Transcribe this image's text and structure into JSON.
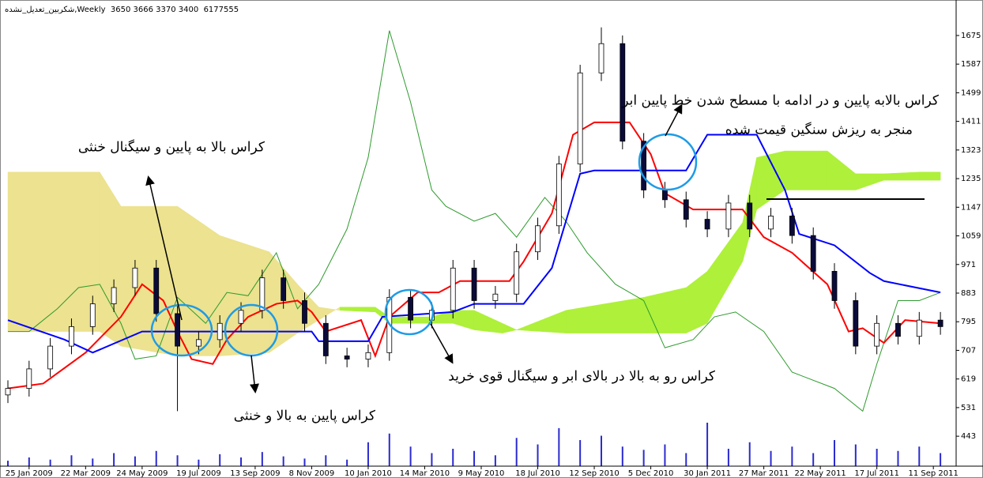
{
  "chart_data": {
    "type": "candlestick",
    "header": "شکربین_تعدیل_نشده,Weekly  3650 3666 3370 3400  6177555",
    "xlim": [
      0,
      134
    ],
    "ylim": [
      351,
      1772
    ],
    "yticks": [
      443,
      531,
      619,
      707,
      795,
      883,
      971,
      1059,
      1147,
      1235,
      1323,
      1411,
      1499,
      1587,
      1675
    ],
    "xticks": [
      {
        "value": 3,
        "label": "25 Jan 2009"
      },
      {
        "value": 11,
        "label": "22 Mar 2009"
      },
      {
        "value": 19,
        "label": "24 May 2009"
      },
      {
        "value": 27,
        "label": "19 Jul 2009"
      },
      {
        "value": 35,
        "label": "13 Sep 2009"
      },
      {
        "value": 43,
        "label": "8 Nov 2009"
      },
      {
        "value": 51,
        "label": "10 Jan 2010"
      },
      {
        "value": 59,
        "label": "14 Mar 2010"
      },
      {
        "value": 67,
        "label": "9 May 2010"
      },
      {
        "value": 75,
        "label": "18 Jul 2010"
      },
      {
        "value": 83,
        "label": "12 Sep 2010"
      },
      {
        "value": 91,
        "label": "5 Dec 2010"
      },
      {
        "value": 99,
        "label": "30 Jan 2011"
      },
      {
        "value": 107,
        "label": "27 Mar 2011"
      },
      {
        "value": 115,
        "label": "22 May 2011"
      },
      {
        "value": 123,
        "label": "17 Jul 2011"
      },
      {
        "value": 131,
        "label": "11 Sep 2011"
      }
    ],
    "candles": {
      "x": [
        0,
        3,
        6,
        9,
        12,
        15,
        18,
        21,
        24,
        27,
        30,
        33,
        36,
        39,
        42,
        45,
        48,
        51,
        54,
        57,
        60,
        63,
        66,
        69,
        72,
        75,
        78,
        81,
        84,
        87,
        90,
        93,
        96,
        99,
        102,
        105,
        108,
        111,
        114,
        117,
        120,
        123,
        126,
        129,
        132
      ],
      "open": [
        570,
        590,
        650,
        720,
        780,
        850,
        900,
        960,
        820,
        720,
        740,
        790,
        830,
        930,
        860,
        790,
        690,
        680,
        700,
        870,
        800,
        830,
        960,
        860,
        880,
        1010,
        1090,
        1280,
        1560,
        1650,
        1350,
        1200,
        1170,
        1110,
        1080,
        1160,
        1080,
        1120,
        1060,
        950,
        860,
        720,
        790,
        750,
        800
      ],
      "high": [
        615,
        675,
        745,
        805,
        875,
        925,
        985,
        985,
        845,
        765,
        815,
        855,
        955,
        955,
        885,
        815,
        715,
        725,
        895,
        895,
        855,
        985,
        985,
        905,
        1035,
        1115,
        1305,
        1585,
        1700,
        1675,
        1375,
        1225,
        1195,
        1135,
        1185,
        1185,
        1145,
        1145,
        1085,
        975,
        885,
        815,
        815,
        825,
        825
      ],
      "low": [
        545,
        565,
        625,
        695,
        755,
        825,
        875,
        795,
        520,
        695,
        715,
        765,
        805,
        835,
        765,
        665,
        655,
        655,
        675,
        775,
        775,
        805,
        835,
        835,
        855,
        985,
        1065,
        1255,
        1535,
        1325,
        1175,
        1145,
        1085,
        1055,
        1055,
        1055,
        1055,
        1035,
        925,
        835,
        695,
        695,
        725,
        725,
        755
      ],
      "close": [
        590,
        650,
        720,
        780,
        850,
        900,
        960,
        820,
        720,
        740,
        790,
        830,
        930,
        860,
        790,
        690,
        680,
        700,
        870,
        800,
        830,
        960,
        860,
        880,
        1010,
        1090,
        1280,
        1560,
        1650,
        1350,
        1200,
        1170,
        1110,
        1080,
        1160,
        1080,
        1120,
        1060,
        950,
        860,
        720,
        790,
        750,
        800,
        780
      ],
      "up_color": "#ffffff",
      "down_color": "#0b0b3a"
    },
    "volume": {
      "values": [
        5,
        8,
        6,
        10,
        7,
        12,
        9,
        14,
        10,
        6,
        11,
        8,
        13,
        9,
        7,
        10,
        6,
        22,
        30,
        18,
        12,
        16,
        14,
        10,
        26,
        20,
        35,
        24,
        28,
        18,
        15,
        20,
        12,
        40,
        16,
        22,
        14,
        18,
        12,
        24,
        20,
        16,
        14,
        18,
        12
      ],
      "color": "#2a2ad0"
    },
    "tenkan": {
      "color": "#ff0000",
      "x": [
        0,
        5,
        11,
        16,
        19,
        22,
        24,
        26,
        29,
        31,
        34,
        38,
        41,
        43,
        45,
        50,
        52,
        54,
        58,
        61,
        64,
        71,
        73,
        77,
        80,
        83,
        88,
        91,
        93,
        97,
        104,
        107,
        111,
        116,
        119,
        121,
        124,
        127,
        132
      ],
      "values": [
        590,
        605,
        700,
        810,
        910,
        860,
        765,
        680,
        665,
        740,
        810,
        850,
        860,
        825,
        765,
        800,
        690,
        810,
        885,
        885,
        920,
        920,
        980,
        1128,
        1370,
        1408,
        1408,
        1310,
        1190,
        1140,
        1140,
        1055,
        1007,
        910,
        765,
        775,
        730,
        800,
        790
      ]
    },
    "kijun": {
      "color": "#0000ff",
      "x": [
        0,
        8,
        12,
        19,
        24,
        43,
        44,
        51,
        53,
        63,
        66,
        73,
        77,
        81,
        83,
        96,
        99,
        106,
        110,
        112,
        117,
        122,
        124,
        132
      ],
      "values": [
        800,
        740,
        700,
        765,
        765,
        765,
        735,
        735,
        810,
        825,
        850,
        850,
        960,
        1250,
        1260,
        1260,
        1370,
        1370,
        1200,
        1065,
        1030,
        945,
        920,
        885
      ]
    },
    "chikou": {
      "color": "#2e9a2e",
      "x": [
        0,
        3,
        7,
        10,
        13,
        16,
        18,
        21,
        24,
        28,
        31,
        34,
        38,
        41,
        44,
        48,
        51,
        54,
        57,
        60,
        62,
        66,
        69,
        72,
        76,
        79,
        82,
        86,
        90,
        93,
        97,
        100,
        103,
        107,
        111,
        117,
        121,
        123,
        126,
        129,
        132
      ],
      "values": [
        765,
        765,
        835,
        900,
        910,
        790,
        680,
        690,
        870,
        790,
        885,
        875,
        1007,
        835,
        910,
        1080,
        1300,
        1690,
        1470,
        1200,
        1150,
        1104,
        1128,
        1055,
        1177,
        1104,
        1007,
        910,
        860,
        715,
        740,
        810,
        825,
        765,
        640,
        590,
        520,
        665,
        860,
        860,
        885
      ]
    },
    "cloud": {
      "bull_color": "#aef03a",
      "bear_color": "#ece28f",
      "x": [
        0,
        13,
        16,
        24,
        30,
        37,
        41,
        44,
        47,
        52,
        54,
        60,
        63,
        66,
        70,
        72,
        79,
        90,
        96,
        99,
        104,
        106,
        110,
        116,
        120,
        124,
        129,
        132
      ],
      "span_a": [
        765,
        765,
        720,
        690,
        690,
        700,
        760,
        800,
        840,
        840,
        810,
        810,
        830,
        830,
        790,
        770,
        830,
        870,
        900,
        950,
        1100,
        1300,
        1320,
        1320,
        1250,
        1250,
        1255,
        1255
      ],
      "span_b": [
        1255,
        1255,
        1150,
        1150,
        1060,
        1010,
        910,
        840,
        830,
        825,
        790,
        790,
        790,
        770,
        760,
        770,
        760,
        760,
        760,
        790,
        980,
        1140,
        1200,
        1200,
        1200,
        1230,
        1230,
        1230
      ]
    },
    "annotations": [
      "کراس بالا به پایین و سیگنال خنثی",
      "کراس پایین به بالا و خنثی",
      "کراس رو به بالا در بالای ابر و سیگنال قوی خرید",
      "کراس بالابه پایین و در ادامه با مسطح شدن خط پایین ابر",
      "منجر به ریزش سنگین قیمت شده"
    ]
  }
}
